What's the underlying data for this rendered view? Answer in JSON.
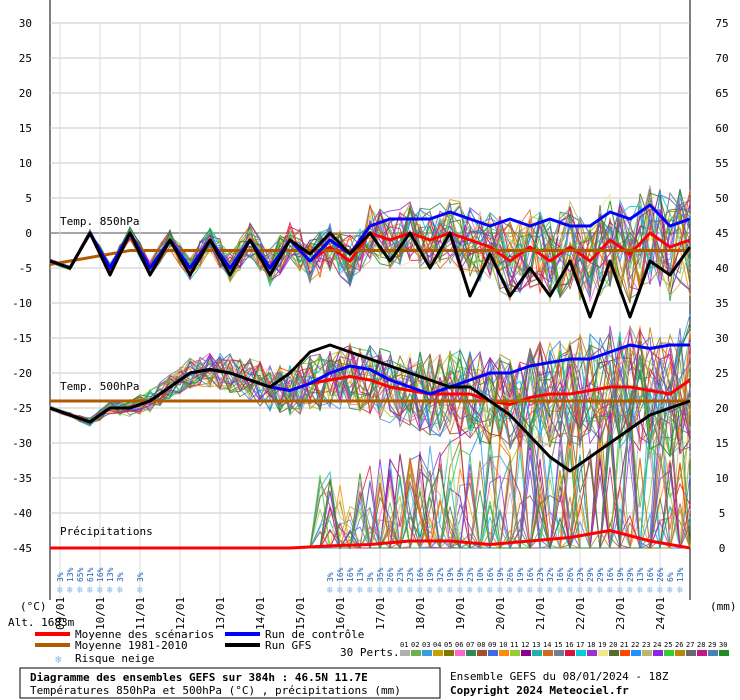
{
  "chart_data": {
    "type": "line",
    "left_axis": {
      "unit": "(°C)",
      "ticks": [
        30,
        25,
        20,
        15,
        10,
        5,
        0,
        -5,
        -10,
        -15,
        -20,
        -25,
        -30,
        -35,
        -40,
        -45
      ],
      "range": [
        -45,
        30
      ]
    },
    "right_axis": {
      "unit": "(mm)",
      "ticks": [
        75,
        70,
        65,
        60,
        55,
        50,
        45,
        40,
        35,
        30,
        25,
        20,
        15,
        10,
        5,
        0
      ],
      "range": [
        0,
        75
      ]
    },
    "x_axis": {
      "range_hours": [
        0,
        384
      ],
      "dates": [
        "09/01",
        "10/01",
        "11/01",
        "12/01",
        "13/01",
        "14/01",
        "15/01",
        "16/01",
        "17/01",
        "18/01",
        "19/01",
        "20/01",
        "21/01",
        "22/01",
        "23/01",
        "24/01"
      ],
      "date_hours": [
        6,
        30,
        54,
        78,
        102,
        126,
        150,
        174,
        198,
        222,
        246,
        270,
        294,
        318,
        342,
        366
      ]
    },
    "panels": {
      "t850_label": "Temp. 850hPa",
      "t500_label": "Temp. 500hPa",
      "precip_label": "Précipitations",
      "altitude": "Alt. 1683m"
    },
    "series": [
      {
        "name": "Moyenne des scénarios",
        "panel": "t850",
        "color": "#ff0000",
        "hours": [
          0,
          12,
          24,
          36,
          48,
          60,
          72,
          84,
          96,
          108,
          120,
          132,
          144,
          156,
          168,
          180,
          192,
          204,
          216,
          228,
          240,
          252,
          264,
          276,
          288,
          300,
          312,
          324,
          336,
          348,
          360,
          372,
          384
        ],
        "values": [
          -4,
          -5,
          0,
          -5,
          0,
          -5,
          -1,
          -5,
          -1,
          -5,
          -1,
          -5,
          -1,
          -4,
          -2,
          -4,
          0,
          -1,
          0,
          -1,
          0,
          -1,
          -2,
          -4,
          -2,
          -4,
          -2,
          -4,
          -1,
          -3,
          0,
          -2,
          -1
        ]
      },
      {
        "name": "Moyenne 1981-2010",
        "panel": "t850",
        "color": "#b25a00",
        "hours": [
          0,
          24,
          48,
          72,
          96,
          120,
          144,
          168,
          192,
          216,
          240,
          264,
          288,
          312,
          336,
          360,
          384
        ],
        "values": [
          -4.5,
          -3.5,
          -2.5,
          -2.5,
          -2.5,
          -2.5,
          -2.5,
          -2.5,
          -2.5,
          -2.5,
          -2.5,
          -2.5,
          -2.5,
          -2.5,
          -2.5,
          -2.5,
          -2.5
        ]
      },
      {
        "name": "Run de contrôle",
        "panel": "t850",
        "color": "#0000ff",
        "hours": [
          0,
          12,
          24,
          36,
          48,
          60,
          72,
          84,
          96,
          108,
          120,
          132,
          144,
          156,
          168,
          180,
          192,
          204,
          216,
          228,
          240,
          252,
          264,
          276,
          288,
          300,
          312,
          324,
          336,
          348,
          360,
          372,
          384
        ],
        "values": [
          -4,
          -5,
          0,
          -5,
          0,
          -5,
          -1,
          -5,
          -1,
          -5,
          -1,
          -5,
          -1,
          -4,
          -1,
          -3,
          1,
          2,
          2,
          2,
          3,
          2,
          1,
          2,
          1,
          2,
          1,
          1,
          3,
          2,
          4,
          1,
          2
        ]
      },
      {
        "name": "Run GFS",
        "panel": "t850",
        "color": "#000000",
        "hours": [
          0,
          12,
          24,
          36,
          48,
          60,
          72,
          84,
          96,
          108,
          120,
          132,
          144,
          156,
          168,
          180,
          192,
          204,
          216,
          228,
          240,
          252,
          264,
          276,
          288,
          300,
          312,
          324,
          336,
          348,
          360,
          372,
          384
        ],
        "values": [
          -4,
          -5,
          0,
          -6,
          0,
          -6,
          -1,
          -6,
          -1,
          -6,
          -1,
          -6,
          -1,
          -3,
          0,
          -3,
          0,
          -4,
          0,
          -5,
          0,
          -9,
          -3,
          -9,
          -5,
          -9,
          -4,
          -12,
          -4,
          -12,
          -4,
          -6,
          -2
        ]
      },
      {
        "name": "Moyenne des scénarios",
        "panel": "t500",
        "color": "#ff0000",
        "hours": [
          0,
          12,
          24,
          36,
          48,
          60,
          72,
          84,
          96,
          108,
          120,
          132,
          144,
          156,
          168,
          180,
          192,
          204,
          216,
          228,
          240,
          252,
          264,
          276,
          288,
          300,
          312,
          324,
          336,
          348,
          360,
          372,
          384
        ],
        "values": [
          -25,
          -26,
          -27,
          -25,
          -25,
          -24,
          -22,
          -20,
          -19.5,
          -20,
          -21,
          -22,
          -22.5,
          -21.5,
          -21,
          -20.5,
          -21,
          -22,
          -22.5,
          -23,
          -23,
          -23,
          -24,
          -24.5,
          -23.5,
          -23,
          -23,
          -22.5,
          -22,
          -22,
          -22.5,
          -23,
          -21
        ]
      },
      {
        "name": "Moyenne 1981-2010",
        "panel": "t500",
        "color": "#b25a00",
        "hours": [
          0,
          48,
          96,
          144,
          192,
          240,
          288,
          336,
          384
        ],
        "values": [
          -24,
          -24,
          -24,
          -24,
          -24,
          -24,
          -24,
          -24,
          -24
        ]
      },
      {
        "name": "Run de contrôle",
        "panel": "t500",
        "color": "#0000ff",
        "hours": [
          0,
          12,
          24,
          36,
          48,
          60,
          72,
          84,
          96,
          108,
          120,
          132,
          144,
          156,
          168,
          180,
          192,
          204,
          216,
          228,
          240,
          252,
          264,
          276,
          288,
          300,
          312,
          324,
          336,
          348,
          360,
          372,
          384
        ],
        "values": [
          -25,
          -26,
          -27,
          -25,
          -25,
          -24,
          -22,
          -20,
          -19.5,
          -20,
          -21,
          -22,
          -22.5,
          -21.5,
          -20,
          -19,
          -19.5,
          -21,
          -22,
          -23,
          -22,
          -21,
          -20,
          -20,
          -19,
          -18.5,
          -18,
          -18,
          -17,
          -16,
          -16.5,
          -16,
          -16
        ]
      },
      {
        "name": "Run GFS",
        "panel": "t500",
        "color": "#000000",
        "hours": [
          0,
          12,
          24,
          36,
          48,
          60,
          72,
          84,
          96,
          108,
          120,
          132,
          144,
          156,
          168,
          180,
          192,
          204,
          216,
          228,
          240,
          252,
          264,
          276,
          288,
          300,
          312,
          324,
          336,
          348,
          360,
          372,
          384
        ],
        "values": [
          -25,
          -26,
          -27,
          -25,
          -25,
          -24,
          -22,
          -20,
          -19.5,
          -20,
          -21,
          -22,
          -20,
          -17,
          -16,
          -17,
          -18,
          -19,
          -20,
          -21,
          -22,
          -22,
          -24,
          -26,
          -29,
          -32,
          -34,
          -32,
          -30,
          -28,
          -26,
          -25,
          -24
        ]
      },
      {
        "name": "Moyenne des scénarios",
        "panel": "precip",
        "color": "#ff0000",
        "hours": [
          0,
          24,
          48,
          72,
          96,
          120,
          144,
          168,
          192,
          216,
          240,
          264,
          288,
          312,
          336,
          360,
          384
        ],
        "values": [
          0,
          0,
          0,
          0,
          0,
          0,
          0,
          0.3,
          0.5,
          1,
          1,
          0.5,
          1,
          1.5,
          2.5,
          1,
          0
        ]
      }
    ],
    "snow_risk": {
      "legend": "Risque neige",
      "hours": [
        6,
        12,
        18,
        24,
        30,
        36,
        42,
        54,
        168,
        174,
        180,
        186,
        192,
        198,
        204,
        210,
        216,
        222,
        228,
        234,
        240,
        246,
        252,
        258,
        264,
        270,
        276,
        282,
        288,
        294,
        300,
        306,
        312,
        318,
        324,
        330,
        336,
        342,
        348,
        354,
        360,
        366,
        372,
        378
      ],
      "labels": [
        "3%",
        "13%",
        "65%",
        "61%",
        "16%",
        "13%",
        "3%",
        "3%",
        "3%",
        "16%",
        "16%",
        "13%",
        "3%",
        "35%",
        "26%",
        "23%",
        "23%",
        "16%",
        "19%",
        "32%",
        "19%",
        "19%",
        "23%",
        "10%",
        "16%",
        "19%",
        "26%",
        "19%",
        "16%",
        "23%",
        "32%",
        "16%",
        "26%",
        "23%",
        "29%",
        "29%",
        "16%",
        "19%",
        "29%",
        "13%",
        "16%",
        "26%",
        "6%",
        "13%"
      ]
    },
    "legend": {
      "items": [
        "Moyenne des scénarios",
        "Run de contrôle",
        "Moyenne 1981-2010",
        "Run GFS",
        "Risque neige"
      ],
      "perts_label": "30 Perts.",
      "pert_numbers": [
        "01",
        "02",
        "03",
        "04",
        "05",
        "06",
        "07",
        "08",
        "09",
        "10",
        "11",
        "12",
        "13",
        "14",
        "15",
        "16",
        "17",
        "18",
        "19",
        "20",
        "21",
        "22",
        "23",
        "24",
        "25",
        "26",
        "27",
        "28",
        "29",
        "30"
      ],
      "pert_colors": [
        "#b0b0b0",
        "#6ab04c",
        "#3c9be0",
        "#c8a000",
        "#7a7a00",
        "#ff66cc",
        "#2e8b57",
        "#a0522d",
        "#4169e1",
        "#ff8c00",
        "#9acd32",
        "#8b008b",
        "#20b2aa",
        "#d2691e",
        "#708090",
        "#dc143c",
        "#00ced1",
        "#9932cc",
        "#f0e68c",
        "#556b2f",
        "#ff4500",
        "#1e90ff",
        "#bdb76b",
        "#8a2be2",
        "#32cd32",
        "#b8860b",
        "#696969",
        "#c71585",
        "#4682b4",
        "#228b22"
      ]
    },
    "footer": {
      "title": "Diagramme des ensembles GEFS sur 384h : 46.5N 11.7E",
      "subtitle": "Températures 850hPa et 500hPa (°C) , précipitations (mm)",
      "run_info": "Ensemble GEFS du 08/01/2024 - 18Z",
      "copyright": "Copyright 2024 Meteociel.fr"
    }
  }
}
